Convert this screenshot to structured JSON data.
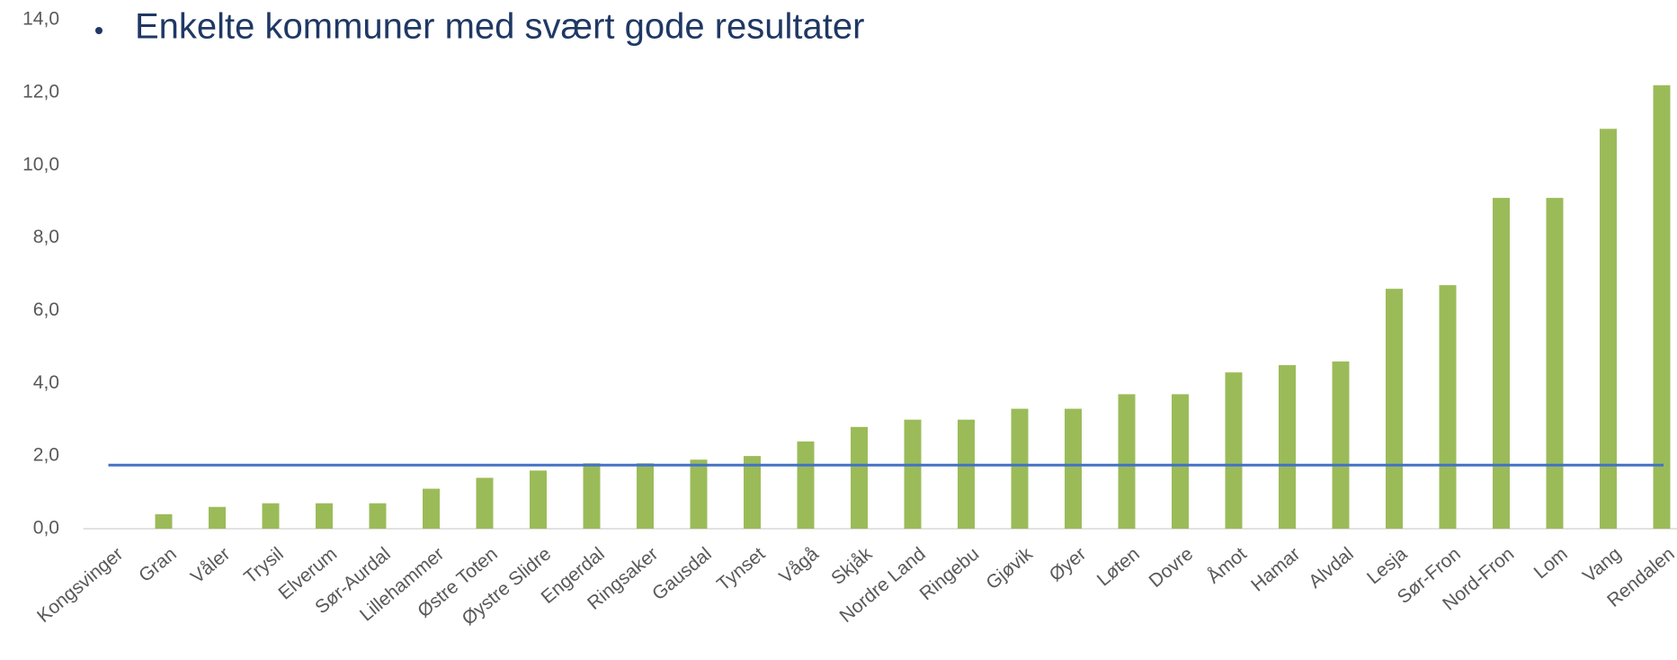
{
  "chart_data": {
    "type": "bar",
    "title": "Enkelte kommuner med svært gode resultater",
    "categories": [
      "Kongsvinger",
      "Gran",
      "Våler",
      "Trysil",
      "Elverum",
      "Sør-Aurdal",
      "Lillehammer",
      "Østre Toten",
      "Øystre Slidre",
      "Engerdal",
      "Ringsaker",
      "Gausdal",
      "Tynset",
      "Vågå",
      "Skjåk",
      "Nordre Land",
      "Ringebu",
      "Gjøvik",
      "Øyer",
      "Løten",
      "Dovre",
      "Åmot",
      "Hamar",
      "Alvdal",
      "Lesja",
      "Sør-Fron",
      "Nord-Fron",
      "Lom",
      "Vang",
      "Rendalen"
    ],
    "values": [
      0,
      0.4,
      0.6,
      0.7,
      0.7,
      0.7,
      1.1,
      1.4,
      1.6,
      1.8,
      1.8,
      1.9,
      2.0,
      2.4,
      2.8,
      3.0,
      3.0,
      3.3,
      3.3,
      3.7,
      3.7,
      4.3,
      4.5,
      4.6,
      6.6,
      6.7,
      9.1,
      9.1,
      11.0,
      12.2
    ],
    "color": "#9bbb59",
    "reference_line": {
      "value": 1.75,
      "color": "#4472c4"
    },
    "ylim": [
      0,
      14
    ],
    "yticks": [
      {
        "value": 0,
        "label": "0,0"
      },
      {
        "value": 2,
        "label": "2,0"
      },
      {
        "value": 4,
        "label": "4,0"
      },
      {
        "value": 6,
        "label": "6,0"
      },
      {
        "value": 8,
        "label": "8,0"
      },
      {
        "value": 10,
        "label": "10,0"
      },
      {
        "value": 12,
        "label": "12,0"
      },
      {
        "value": 14,
        "label": "14,0"
      }
    ],
    "grid": false
  }
}
